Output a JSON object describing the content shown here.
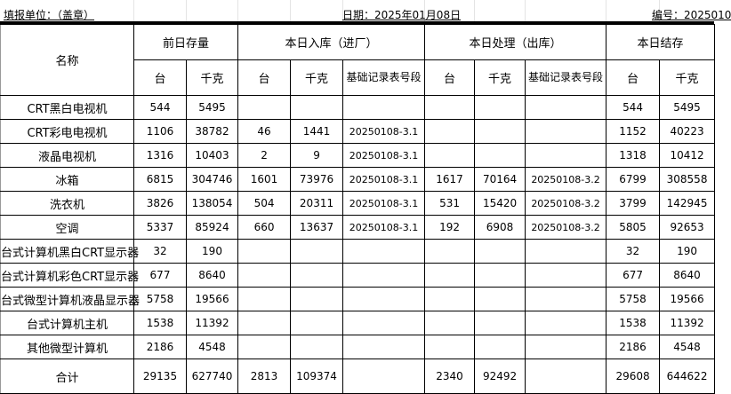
{
  "header": {
    "unit_label": "填报单位：（盖章）",
    "date_label": "日期：2025年01月08日",
    "code_label": "编号：2025010"
  },
  "columns": {
    "name": "名称",
    "groups": [
      "前日存量",
      "本日入库（进厂）",
      "本日处理（出库）",
      "本日结存"
    ],
    "sub": {
      "units": "台",
      "kg": "千克",
      "record": "基础记录表号段"
    }
  },
  "rows": [
    {
      "name": "CRT黑白电视机",
      "prev_units": "544",
      "prev_kg": "5495",
      "in_units": "",
      "in_kg": "",
      "in_record": "",
      "out_units": "",
      "out_kg": "",
      "out_record": "",
      "end_units": "544",
      "end_kg": "5495"
    },
    {
      "name": "CRT彩电电视机",
      "prev_units": "1106",
      "prev_kg": "38782",
      "in_units": "46",
      "in_kg": "1441",
      "in_record": "20250108-3.1",
      "out_units": "",
      "out_kg": "",
      "out_record": "",
      "end_units": "1152",
      "end_kg": "40223"
    },
    {
      "name": "液晶电视机",
      "prev_units": "1316",
      "prev_kg": "10403",
      "in_units": "2",
      "in_kg": "9",
      "in_record": "20250108-3.1",
      "out_units": "",
      "out_kg": "",
      "out_record": "",
      "end_units": "1318",
      "end_kg": "10412"
    },
    {
      "name": "冰箱",
      "prev_units": "6815",
      "prev_kg": "304746",
      "in_units": "1601",
      "in_kg": "73976",
      "in_record": "20250108-3.1",
      "out_units": "1617",
      "out_kg": "70164",
      "out_record": "20250108-3.2",
      "end_units": "6799",
      "end_kg": "308558"
    },
    {
      "name": "洗衣机",
      "prev_units": "3826",
      "prev_kg": "138054",
      "in_units": "504",
      "in_kg": "20311",
      "in_record": "20250108-3.1",
      "out_units": "531",
      "out_kg": "15420",
      "out_record": "20250108-3.2",
      "end_units": "3799",
      "end_kg": "142945"
    },
    {
      "name": "空调",
      "prev_units": "5337",
      "prev_kg": "85924",
      "in_units": "660",
      "in_kg": "13637",
      "in_record": "20250108-3.1",
      "out_units": "192",
      "out_kg": "6908",
      "out_record": "20250108-3.2",
      "end_units": "5805",
      "end_kg": "92653"
    },
    {
      "name": "台式计算机黑白CRT显示器",
      "prev_units": "32",
      "prev_kg": "190",
      "in_units": "",
      "in_kg": "",
      "in_record": "",
      "out_units": "",
      "out_kg": "",
      "out_record": "",
      "end_units": "32",
      "end_kg": "190"
    },
    {
      "name": "台式计算机彩色CRT显示器",
      "prev_units": "677",
      "prev_kg": "8640",
      "in_units": "",
      "in_kg": "",
      "in_record": "",
      "out_units": "",
      "out_kg": "",
      "out_record": "",
      "end_units": "677",
      "end_kg": "8640"
    },
    {
      "name": "台式微型计算机液晶显示器",
      "prev_units": "5758",
      "prev_kg": "19566",
      "in_units": "",
      "in_kg": "",
      "in_record": "",
      "out_units": "",
      "out_kg": "",
      "out_record": "",
      "end_units": "5758",
      "end_kg": "19566"
    },
    {
      "name": "台式计算机主机",
      "prev_units": "1538",
      "prev_kg": "11392",
      "in_units": "",
      "in_kg": "",
      "in_record": "",
      "out_units": "",
      "out_kg": "",
      "out_record": "",
      "end_units": "1538",
      "end_kg": "11392"
    },
    {
      "name": "其他微型计算机",
      "prev_units": "2186",
      "prev_kg": "4548",
      "in_units": "",
      "in_kg": "",
      "in_record": "",
      "out_units": "",
      "out_kg": "",
      "out_record": "",
      "end_units": "2186",
      "end_kg": "4548"
    }
  ],
  "total": {
    "name": "合计",
    "prev_units": "29135",
    "prev_kg": "627740",
    "in_units": "2813",
    "in_kg": "109374",
    "in_record": "",
    "out_units": "2340",
    "out_kg": "92492",
    "out_record": "",
    "end_units": "29608",
    "end_kg": "644622"
  }
}
